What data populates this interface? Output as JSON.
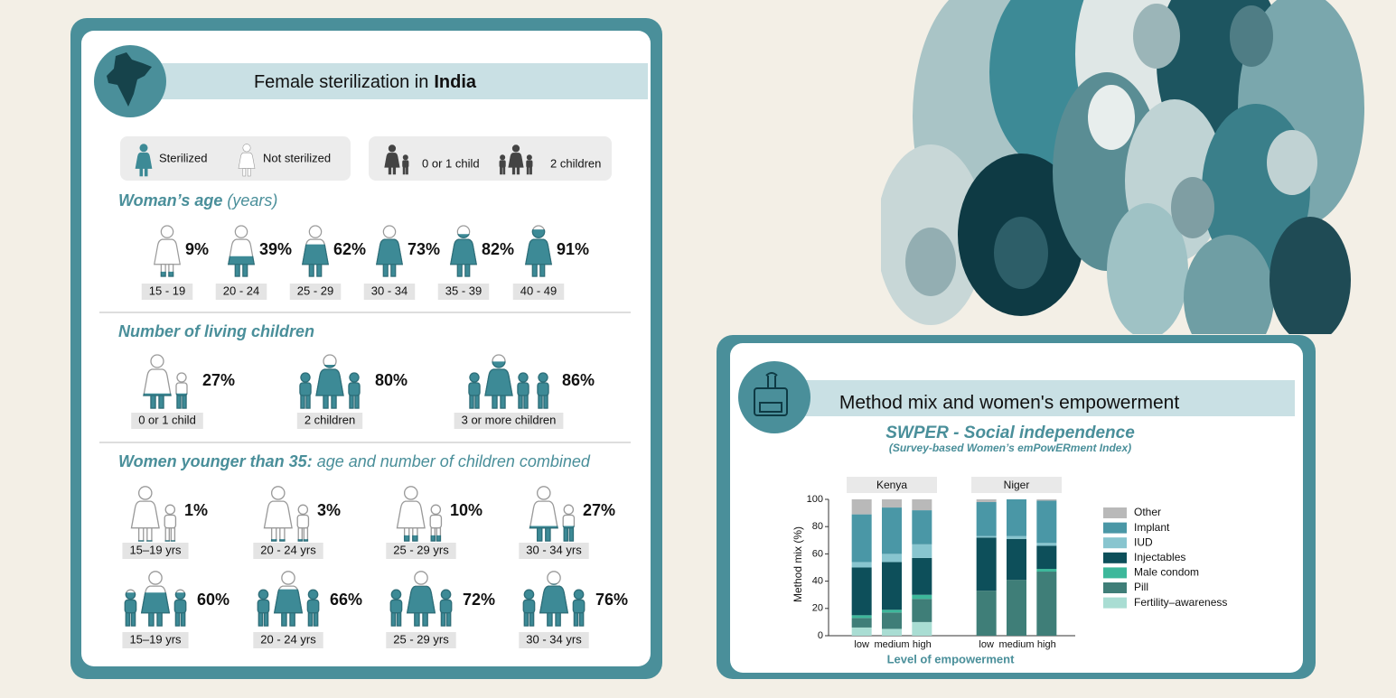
{
  "infographic": {
    "title": "Female sterilization in",
    "title_emphasis": "India",
    "legend_status": [
      "Sterilized",
      "Not sterilized"
    ],
    "legend_children": [
      "0 or 1 child",
      "2 children"
    ],
    "age_section": {
      "heading": "Woman’s age",
      "heading_note": "(years)",
      "items": [
        {
          "label": "15 - 19",
          "value": 9,
          "value_label": "9%"
        },
        {
          "label": "20 - 24",
          "value": 39,
          "value_label": "39%"
        },
        {
          "label": "25 - 29",
          "value": 62,
          "value_label": "62%"
        },
        {
          "label": "30 - 34",
          "value": 73,
          "value_label": "73%"
        },
        {
          "label": "35 - 39",
          "value": 82,
          "value_label": "82%"
        },
        {
          "label": "40 - 49",
          "value": 91,
          "value_label": "91%"
        }
      ]
    },
    "children_section": {
      "heading": "Number of living children",
      "items": [
        {
          "label": "0 or 1 child",
          "value": 27,
          "value_label": "27%"
        },
        {
          "label": "2 children",
          "value": 80,
          "value_label": "80%"
        },
        {
          "label": "3 or more children",
          "value": 86,
          "value_label": "86%"
        }
      ]
    },
    "combined_section": {
      "heading": "Women younger than 35:",
      "heading_rest": "age and number of children combined",
      "rows": [
        [
          {
            "label": "15–19 yrs",
            "value": 1,
            "value_label": "1%"
          },
          {
            "label": "20 - 24 yrs",
            "value": 3,
            "value_label": "3%"
          },
          {
            "label": "25 - 29 yrs",
            "value": 10,
            "value_label": "10%"
          },
          {
            "label": "30 - 34 yrs",
            "value": 27,
            "value_label": "27%"
          }
        ],
        [
          {
            "label": "15–19 yrs",
            "value": 60,
            "value_label": "60%"
          },
          {
            "label": "20 - 24 yrs",
            "value": 66,
            "value_label": "66%"
          },
          {
            "label": "25 - 29 yrs",
            "value": 72,
            "value_label": "72%"
          },
          {
            "label": "30 - 34 yrs",
            "value": 76,
            "value_label": "76%"
          }
        ]
      ]
    }
  },
  "chart_data": {
    "type": "bar",
    "stacked": true,
    "title": "Method mix and women's empowerment",
    "subtitle": "SWPER - Social independence",
    "subtitle_note": "(Survey-based Women’s emPowERment Index)",
    "ylabel": "Method mix (%)",
    "xlabel": "Level of empowerment",
    "facets": [
      {
        "name": "Kenya",
        "categories": [
          "low",
          "medium",
          "high"
        ]
      },
      {
        "name": "Niger",
        "categories": [
          "low",
          "medium",
          "high"
        ]
      }
    ],
    "ylim": [
      0,
      100
    ],
    "yticks": [
      0,
      20,
      40,
      60,
      80,
      100
    ],
    "series": [
      {
        "name": "Other",
        "color": "#b9b9b9",
        "values": [
          [
            11,
            6,
            8
          ],
          [
            2,
            0,
            1
          ]
        ]
      },
      {
        "name": "Implant",
        "color": "#4a97a6",
        "values": [
          [
            35,
            34,
            25
          ],
          [
            25,
            27,
            31
          ]
        ]
      },
      {
        "name": "IUD",
        "color": "#88c5cf",
        "values": [
          [
            4,
            6,
            10
          ],
          [
            1,
            2,
            2
          ]
        ]
      },
      {
        "name": "Injectables",
        "color": "#0d4f5a",
        "values": [
          [
            35,
            35,
            27
          ],
          [
            39,
            30,
            17
          ]
        ]
      },
      {
        "name": "Male condom",
        "color": "#3db89b",
        "values": [
          [
            2,
            2,
            3
          ],
          [
            0,
            0,
            2
          ]
        ]
      },
      {
        "name": "Pill",
        "color": "#3f7e78",
        "values": [
          [
            7,
            12,
            17
          ],
          [
            33,
            41,
            47
          ]
        ]
      },
      {
        "name": "Fertility–awareness",
        "color": "#a9ddd3",
        "values": [
          [
            6,
            5,
            10
          ],
          [
            0,
            0,
            0
          ]
        ]
      }
    ]
  }
}
